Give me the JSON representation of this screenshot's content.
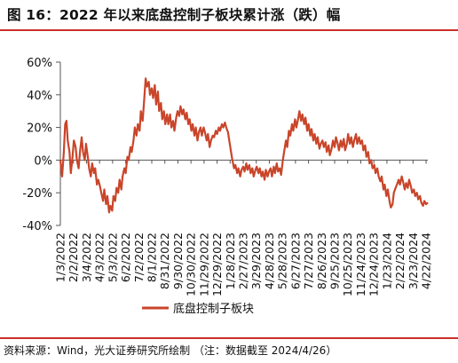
{
  "title": "图 16：2022 年以来底盘控制子板块累计涨（跌）幅",
  "source_note": "资料来源：Wind，光大证券研究所绘制 （注：数据截至 2024/4/26）",
  "colors": {
    "accent": "#c9302c",
    "series": "#c9452a",
    "axis": "#555555"
  },
  "chart_data": {
    "type": "line",
    "title": "",
    "xlabel": "",
    "ylabel": "",
    "ylim": [
      -0.4,
      0.6
    ],
    "yticks": [
      {
        "value": 0.6,
        "label": "60%"
      },
      {
        "value": 0.4,
        "label": "40%"
      },
      {
        "value": 0.2,
        "label": "20%"
      },
      {
        "value": 0.0,
        "label": "0%"
      },
      {
        "value": -0.2,
        "label": "-20%"
      },
      {
        "value": -0.4,
        "label": "-40%"
      }
    ],
    "xlim": [
      "2022-01-03",
      "2024-04-26"
    ],
    "xticks": [
      "1/3/2022",
      "2/2/2022",
      "3/4/2022",
      "4/3/2022",
      "5/3/2022",
      "6/2/2022",
      "7/2/2022",
      "8/1/2022",
      "8/31/2022",
      "9/30/2022",
      "10/30/2022",
      "11/29/2022",
      "12/29/2022",
      "1/28/2023",
      "2/27/2023",
      "3/29/2023",
      "4/28/2023",
      "5/28/2023",
      "6/27/2023",
      "7/27/2023",
      "8/26/2023",
      "9/25/2023",
      "10/25/2023",
      "11/24/2023",
      "12/24/2023",
      "1/23/2024",
      "2/22/2024",
      "3/23/2024",
      "4/22/2024"
    ],
    "grid": false,
    "legend": "bottom-left",
    "series": [
      {
        "name": "底盘控制子板块",
        "color": "#c9452a",
        "points": [
          [
            "2022-01-03",
            0.0
          ],
          [
            "2022-01-07",
            -0.1
          ],
          [
            "2022-01-11",
            0.05
          ],
          [
            "2022-01-14",
            0.22
          ],
          [
            "2022-01-17",
            0.24
          ],
          [
            "2022-01-20",
            0.12
          ],
          [
            "2022-01-24",
            0.05
          ],
          [
            "2022-01-27",
            -0.08
          ],
          [
            "2022-01-31",
            0.02
          ],
          [
            "2022-02-03",
            0.12
          ],
          [
            "2022-02-07",
            0.08
          ],
          [
            "2022-02-10",
            0.0
          ],
          [
            "2022-02-14",
            -0.05
          ],
          [
            "2022-02-17",
            0.05
          ],
          [
            "2022-02-21",
            0.14
          ],
          [
            "2022-02-24",
            0.05
          ],
          [
            "2022-02-28",
            0.0
          ],
          [
            "2022-03-03",
            0.1
          ],
          [
            "2022-03-07",
            0.02
          ],
          [
            "2022-03-10",
            -0.05
          ],
          [
            "2022-03-14",
            -0.1
          ],
          [
            "2022-03-17",
            -0.02
          ],
          [
            "2022-03-21",
            -0.08
          ],
          [
            "2022-03-24",
            -0.05
          ],
          [
            "2022-03-28",
            -0.15
          ],
          [
            "2022-03-31",
            -0.12
          ],
          [
            "2022-04-04",
            -0.16
          ],
          [
            "2022-04-07",
            -0.2
          ],
          [
            "2022-04-11",
            -0.25
          ],
          [
            "2022-04-14",
            -0.18
          ],
          [
            "2022-04-18",
            -0.27
          ],
          [
            "2022-04-21",
            -0.22
          ],
          [
            "2022-04-25",
            -0.32
          ],
          [
            "2022-04-28",
            -0.28
          ],
          [
            "2022-05-02",
            -0.31
          ],
          [
            "2022-05-05",
            -0.22
          ],
          [
            "2022-05-09",
            -0.25
          ],
          [
            "2022-05-12",
            -0.17
          ],
          [
            "2022-05-16",
            -0.2
          ],
          [
            "2022-05-19",
            -0.12
          ],
          [
            "2022-05-23",
            -0.18
          ],
          [
            "2022-05-26",
            -0.1
          ],
          [
            "2022-05-30",
            -0.05
          ],
          [
            "2022-06-02",
            -0.08
          ],
          [
            "2022-06-06",
            0.02
          ],
          [
            "2022-06-09",
            0.0
          ],
          [
            "2022-06-13",
            0.08
          ],
          [
            "2022-06-16",
            0.05
          ],
          [
            "2022-06-20",
            0.12
          ],
          [
            "2022-06-23",
            0.2
          ],
          [
            "2022-06-27",
            0.15
          ],
          [
            "2022-06-30",
            0.22
          ],
          [
            "2022-07-04",
            0.18
          ],
          [
            "2022-07-07",
            0.3
          ],
          [
            "2022-07-11",
            0.24
          ],
          [
            "2022-07-14",
            0.35
          ],
          [
            "2022-07-18",
            0.5
          ],
          [
            "2022-07-21",
            0.45
          ],
          [
            "2022-07-25",
            0.48
          ],
          [
            "2022-07-28",
            0.4
          ],
          [
            "2022-08-01",
            0.44
          ],
          [
            "2022-08-04",
            0.38
          ],
          [
            "2022-08-08",
            0.46
          ],
          [
            "2022-08-11",
            0.34
          ],
          [
            "2022-08-15",
            0.42
          ],
          [
            "2022-08-18",
            0.3
          ],
          [
            "2022-08-22",
            0.35
          ],
          [
            "2022-08-25",
            0.25
          ],
          [
            "2022-08-29",
            0.3
          ],
          [
            "2022-09-01",
            0.22
          ],
          [
            "2022-09-05",
            0.28
          ],
          [
            "2022-09-08",
            0.22
          ],
          [
            "2022-09-12",
            0.28
          ],
          [
            "2022-09-15",
            0.2
          ],
          [
            "2022-09-19",
            0.24
          ],
          [
            "2022-09-22",
            0.18
          ],
          [
            "2022-09-26",
            0.26
          ],
          [
            "2022-09-29",
            0.3
          ],
          [
            "2022-10-03",
            0.27
          ],
          [
            "2022-10-06",
            0.33
          ],
          [
            "2022-10-10",
            0.28
          ],
          [
            "2022-10-13",
            0.31
          ],
          [
            "2022-10-17",
            0.25
          ],
          [
            "2022-10-20",
            0.29
          ],
          [
            "2022-10-24",
            0.22
          ],
          [
            "2022-10-27",
            0.25
          ],
          [
            "2022-10-31",
            0.18
          ],
          [
            "2022-11-03",
            0.22
          ],
          [
            "2022-11-07",
            0.15
          ],
          [
            "2022-11-10",
            0.2
          ],
          [
            "2022-11-14",
            0.12
          ],
          [
            "2022-11-17",
            0.17
          ],
          [
            "2022-11-21",
            0.2
          ],
          [
            "2022-11-24",
            0.15
          ],
          [
            "2022-11-28",
            0.2
          ],
          [
            "2022-12-01",
            0.17
          ],
          [
            "2022-12-05",
            0.12
          ],
          [
            "2022-12-08",
            0.16
          ],
          [
            "2022-12-12",
            0.08
          ],
          [
            "2022-12-15",
            0.12
          ],
          [
            "2022-12-19",
            0.15
          ],
          [
            "2022-12-22",
            0.14
          ],
          [
            "2022-12-26",
            0.18
          ],
          [
            "2022-12-29",
            0.16
          ],
          [
            "2023-01-02",
            0.2
          ],
          [
            "2023-01-05",
            0.18
          ],
          [
            "2023-01-09",
            0.22
          ],
          [
            "2023-01-12",
            0.2
          ],
          [
            "2023-01-16",
            0.23
          ],
          [
            "2023-01-19",
            0.2
          ],
          [
            "2023-01-23",
            0.17
          ],
          [
            "2023-01-26",
            0.12
          ],
          [
            "2023-01-30",
            0.05
          ],
          [
            "2023-02-02",
            0.0
          ],
          [
            "2023-02-06",
            -0.05
          ],
          [
            "2023-02-09",
            -0.03
          ],
          [
            "2023-02-13",
            -0.08
          ],
          [
            "2023-02-16",
            -0.05
          ],
          [
            "2023-02-20",
            -0.1
          ],
          [
            "2023-02-23",
            -0.06
          ],
          [
            "2023-02-27",
            -0.04
          ],
          [
            "2023-03-02",
            -0.07
          ],
          [
            "2023-03-06",
            -0.02
          ],
          [
            "2023-03-09",
            -0.06
          ],
          [
            "2023-03-13",
            -0.03
          ],
          [
            "2023-03-16",
            -0.08
          ],
          [
            "2023-03-20",
            -0.05
          ],
          [
            "2023-03-23",
            -0.1
          ],
          [
            "2023-03-27",
            -0.06
          ],
          [
            "2023-03-30",
            -0.04
          ],
          [
            "2023-04-03",
            -0.08
          ],
          [
            "2023-04-06",
            -0.05
          ],
          [
            "2023-04-10",
            -0.1
          ],
          [
            "2023-04-13",
            -0.07
          ],
          [
            "2023-04-17",
            -0.12
          ],
          [
            "2023-04-20",
            -0.06
          ],
          [
            "2023-04-24",
            -0.1
          ],
          [
            "2023-04-27",
            -0.07
          ],
          [
            "2023-05-01",
            -0.05
          ],
          [
            "2023-05-04",
            -0.1
          ],
          [
            "2023-05-08",
            -0.04
          ],
          [
            "2023-05-11",
            -0.08
          ],
          [
            "2023-05-15",
            -0.02
          ],
          [
            "2023-05-18",
            -0.07
          ],
          [
            "2023-05-22",
            -0.05
          ],
          [
            "2023-05-25",
            -0.09
          ],
          [
            "2023-05-29",
            0.0
          ],
          [
            "2023-06-01",
            0.05
          ],
          [
            "2023-06-05",
            0.12
          ],
          [
            "2023-06-08",
            0.08
          ],
          [
            "2023-06-12",
            0.18
          ],
          [
            "2023-06-15",
            0.15
          ],
          [
            "2023-06-19",
            0.22
          ],
          [
            "2023-06-22",
            0.18
          ],
          [
            "2023-06-26",
            0.25
          ],
          [
            "2023-06-29",
            0.2
          ],
          [
            "2023-07-03",
            0.25
          ],
          [
            "2023-07-06",
            0.3
          ],
          [
            "2023-07-10",
            0.24
          ],
          [
            "2023-07-13",
            0.28
          ],
          [
            "2023-07-17",
            0.22
          ],
          [
            "2023-07-20",
            0.26
          ],
          [
            "2023-07-24",
            0.18
          ],
          [
            "2023-07-27",
            0.22
          ],
          [
            "2023-07-31",
            0.15
          ],
          [
            "2023-08-03",
            0.19
          ],
          [
            "2023-08-07",
            0.12
          ],
          [
            "2023-08-10",
            0.16
          ],
          [
            "2023-08-14",
            0.1
          ],
          [
            "2023-08-17",
            0.14
          ],
          [
            "2023-08-21",
            0.07
          ],
          [
            "2023-08-24",
            0.1
          ],
          [
            "2023-08-28",
            0.12
          ],
          [
            "2023-08-31",
            0.08
          ],
          [
            "2023-09-04",
            0.11
          ],
          [
            "2023-09-07",
            0.05
          ],
          [
            "2023-09-11",
            0.09
          ],
          [
            "2023-09-14",
            0.03
          ],
          [
            "2023-09-18",
            0.07
          ],
          [
            "2023-09-21",
            0.12
          ],
          [
            "2023-09-25",
            0.08
          ],
          [
            "2023-09-28",
            0.14
          ],
          [
            "2023-10-02",
            0.1
          ],
          [
            "2023-10-05",
            0.06
          ],
          [
            "2023-10-09",
            0.12
          ],
          [
            "2023-10-12",
            0.08
          ],
          [
            "2023-10-16",
            0.13
          ],
          [
            "2023-10-19",
            0.06
          ],
          [
            "2023-10-23",
            0.1
          ],
          [
            "2023-10-26",
            0.16
          ],
          [
            "2023-10-30",
            0.1
          ],
          [
            "2023-11-02",
            0.14
          ],
          [
            "2023-11-06",
            0.08
          ],
          [
            "2023-11-09",
            0.12
          ],
          [
            "2023-11-13",
            0.16
          ],
          [
            "2023-11-16",
            0.1
          ],
          [
            "2023-11-20",
            0.14
          ],
          [
            "2023-11-23",
            0.1
          ],
          [
            "2023-11-27",
            0.12
          ],
          [
            "2023-11-30",
            0.06
          ],
          [
            "2023-12-04",
            0.09
          ],
          [
            "2023-12-07",
            0.02
          ],
          [
            "2023-12-11",
            0.05
          ],
          [
            "2023-12-14",
            -0.02
          ],
          [
            "2023-12-18",
            0.0
          ],
          [
            "2023-12-21",
            -0.05
          ],
          [
            "2023-12-25",
            -0.03
          ],
          [
            "2023-12-28",
            -0.08
          ],
          [
            "2024-01-01",
            -0.05
          ],
          [
            "2024-01-04",
            -0.1
          ],
          [
            "2024-01-08",
            -0.13
          ],
          [
            "2024-01-11",
            -0.1
          ],
          [
            "2024-01-15",
            -0.18
          ],
          [
            "2024-01-18",
            -0.15
          ],
          [
            "2024-01-22",
            -0.22
          ],
          [
            "2024-01-25",
            -0.18
          ],
          [
            "2024-01-29",
            -0.25
          ],
          [
            "2024-02-01",
            -0.29
          ],
          [
            "2024-02-05",
            -0.27
          ],
          [
            "2024-02-08",
            -0.2
          ],
          [
            "2024-02-12",
            -0.17
          ],
          [
            "2024-02-15",
            -0.15
          ],
          [
            "2024-02-19",
            -0.12
          ],
          [
            "2024-02-22",
            -0.15
          ],
          [
            "2024-02-26",
            -0.1
          ],
          [
            "2024-02-29",
            -0.13
          ],
          [
            "2024-03-04",
            -0.18
          ],
          [
            "2024-03-07",
            -0.14
          ],
          [
            "2024-03-11",
            -0.17
          ],
          [
            "2024-03-14",
            -0.12
          ],
          [
            "2024-03-18",
            -0.16
          ],
          [
            "2024-03-21",
            -0.2
          ],
          [
            "2024-03-25",
            -0.18
          ],
          [
            "2024-03-28",
            -0.22
          ],
          [
            "2024-04-01",
            -0.2
          ],
          [
            "2024-04-04",
            -0.24
          ],
          [
            "2024-04-08",
            -0.22
          ],
          [
            "2024-04-11",
            -0.26
          ],
          [
            "2024-04-15",
            -0.28
          ],
          [
            "2024-04-18",
            -0.25
          ],
          [
            "2024-04-22",
            -0.27
          ],
          [
            "2024-04-26",
            -0.26
          ]
        ]
      }
    ]
  }
}
